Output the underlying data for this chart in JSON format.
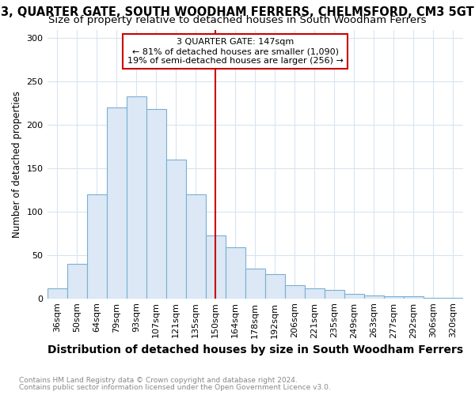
{
  "title": "3, QUARTER GATE, SOUTH WOODHAM FERRERS, CHELMSFORD, CM3 5GT",
  "subtitle": "Size of property relative to detached houses in South Woodham Ferrers",
  "xlabel": "Distribution of detached houses by size in South Woodham Ferrers",
  "ylabel": "Number of detached properties",
  "footnote1": "Contains HM Land Registry data © Crown copyright and database right 2024.",
  "footnote2": "Contains public sector information licensed under the Open Government Licence v3.0.",
  "bar_labels": [
    "36sqm",
    "50sqm",
    "64sqm",
    "79sqm",
    "93sqm",
    "107sqm",
    "121sqm",
    "135sqm",
    "150sqm",
    "164sqm",
    "178sqm",
    "192sqm",
    "206sqm",
    "221sqm",
    "235sqm",
    "249sqm",
    "263sqm",
    "277sqm",
    "292sqm",
    "306sqm",
    "320sqm"
  ],
  "bar_values": [
    12,
    40,
    120,
    220,
    233,
    218,
    160,
    120,
    73,
    59,
    34,
    28,
    15,
    12,
    10,
    5,
    3,
    2,
    2,
    1,
    1
  ],
  "bar_color": "#dce8f5",
  "bar_edge_color": "#7aafd4",
  "vline_x_label": "150sqm",
  "vline_color": "#cc0000",
  "annotation_title": "3 QUARTER GATE: 147sqm",
  "annotation_line1": "← 81% of detached houses are smaller (1,090)",
  "annotation_line2": "19% of semi-detached houses are larger (256) →",
  "annotation_box_facecolor": "#ffffff",
  "annotation_box_edgecolor": "#cc0000",
  "ylim": [
    0,
    310
  ],
  "yticks": [
    0,
    50,
    100,
    150,
    200,
    250,
    300
  ],
  "fig_background_color": "#ffffff",
  "plot_background_color": "#ffffff",
  "grid_color": "#d8e4f0",
  "title_fontsize": 10.5,
  "subtitle_fontsize": 9.5,
  "ylabel_fontsize": 8.5,
  "xlabel_fontsize": 10,
  "tick_fontsize": 8,
  "footnote_fontsize": 6.5,
  "footnote_color": "#888888"
}
